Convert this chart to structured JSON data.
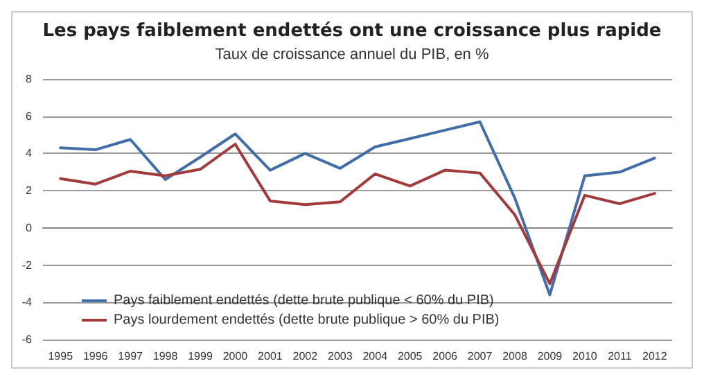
{
  "chart_data": {
    "type": "line",
    "title": "Les pays faiblement endettés ont une croissance plus rapide",
    "subtitle": "Taux de croissance annuel du PIB, en %",
    "categories": [
      "1995",
      "1996",
      "1997",
      "1998",
      "1999",
      "2000",
      "2001",
      "2002",
      "2003",
      "2004",
      "2005",
      "2006",
      "2007",
      "2008",
      "2009",
      "2010",
      "2011",
      "2012"
    ],
    "series": [
      {
        "name": "Pays faiblement endettés (dette brute publique < 60% du PIB)",
        "color": "#3f6ea8",
        "values": [
          4.3,
          4.2,
          4.75,
          2.6,
          3.8,
          5.05,
          3.1,
          4.0,
          3.2,
          4.35,
          4.8,
          5.25,
          5.7,
          1.6,
          -3.6,
          2.8,
          3.0,
          3.75
        ]
      },
      {
        "name": "Pays lourdement endettés (dette brute publique > 60% du PIB)",
        "color": "#a33a3a",
        "values": [
          2.65,
          2.35,
          3.05,
          2.8,
          3.15,
          4.5,
          1.45,
          1.25,
          1.4,
          2.9,
          2.25,
          3.1,
          2.95,
          0.7,
          -3.0,
          1.75,
          1.3,
          1.85
        ]
      }
    ],
    "ylim": [
      -6,
      8
    ],
    "yticks": [
      -6,
      -4,
      -2,
      0,
      2,
      4,
      6,
      8
    ],
    "grid": "y",
    "legend": "bottom left",
    "marker": "none",
    "line_style": "solid"
  }
}
